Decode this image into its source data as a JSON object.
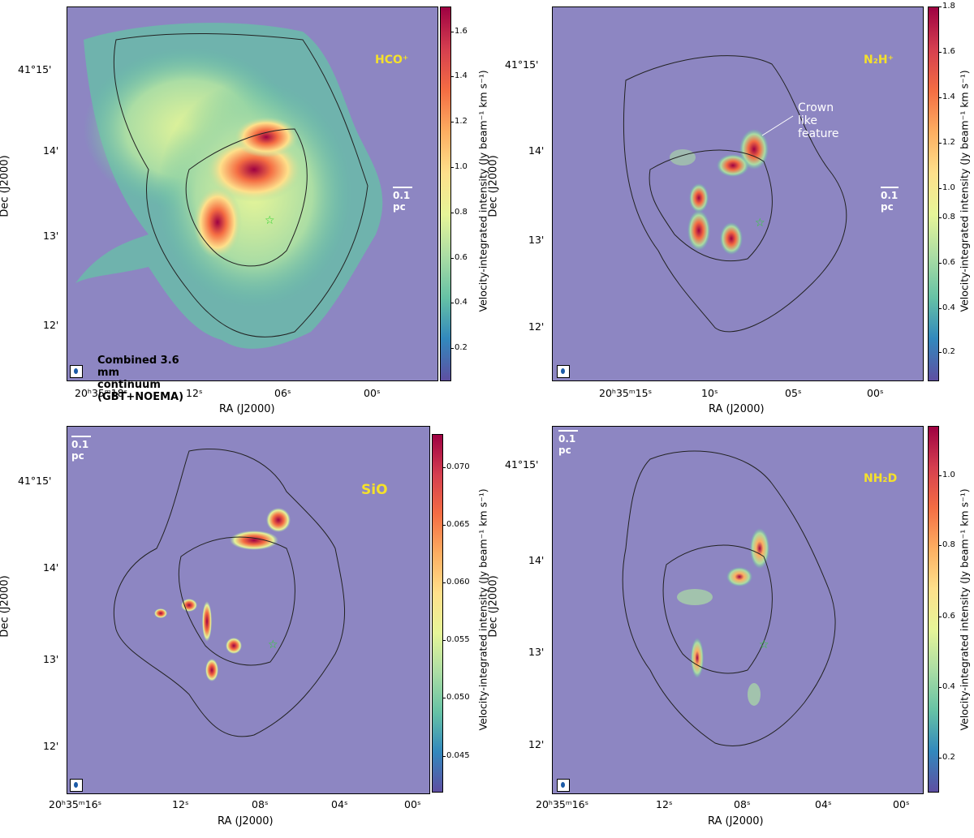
{
  "ra_label": "RA (J2000)",
  "dec_label": "Dec (J2000)",
  "colorbar_label": "Velocity-integrated intensity (Jy beam⁻¹ km s⁻¹)",
  "scale_label": "0.1 pc",
  "panels": [
    {
      "molecule": "HCO⁺",
      "dec_ticks": [
        "41°15'",
        "14'",
        "13'",
        "12'"
      ],
      "ra_ticks": [
        "20ʰ35ᵐ18ˢ",
        "12ˢ",
        "06ˢ",
        "00ˢ"
      ],
      "colorbar_ticks": [
        "1.6",
        "1.4",
        "1.2",
        "1.0",
        "0.8",
        "0.6",
        "0.4",
        "0.2"
      ],
      "continuum_label": "Combined 3.6 mm continuum (GBT+NOEMA)"
    },
    {
      "molecule": "N₂H⁺",
      "dec_ticks": [
        "41°15'",
        "14'",
        "13'",
        "12'"
      ],
      "ra_ticks": [
        "20ʰ35ᵐ15ˢ",
        "10ˢ",
        "05ˢ",
        "00ˢ"
      ],
      "colorbar_ticks": [
        "1.8",
        "1.6",
        "1.4",
        "1.2",
        "1.0",
        "0.8",
        "0.6",
        "0.4",
        "0.2"
      ],
      "annotation": "Crown like feature"
    },
    {
      "molecule": "SiO",
      "dec_ticks": [
        "41°15'",
        "14'",
        "13'",
        "12'"
      ],
      "ra_ticks": [
        "20ʰ35ᵐ16ˢ",
        "12ˢ",
        "08ˢ",
        "04ˢ",
        "00ˢ"
      ],
      "colorbar_ticks": [
        "0.070",
        "0.065",
        "0.060",
        "0.055",
        "0.050",
        "0.045"
      ]
    },
    {
      "molecule": "NH₂D",
      "dec_ticks": [
        "41°15'",
        "14'",
        "13'",
        "12'"
      ],
      "ra_ticks": [
        "20ʰ35ᵐ16ˢ",
        "12ˢ",
        "08ˢ",
        "04ˢ",
        "00ˢ"
      ],
      "colorbar_ticks": [
        "1.0",
        "0.8",
        "0.6",
        "0.4",
        "0.2"
      ]
    }
  ]
}
